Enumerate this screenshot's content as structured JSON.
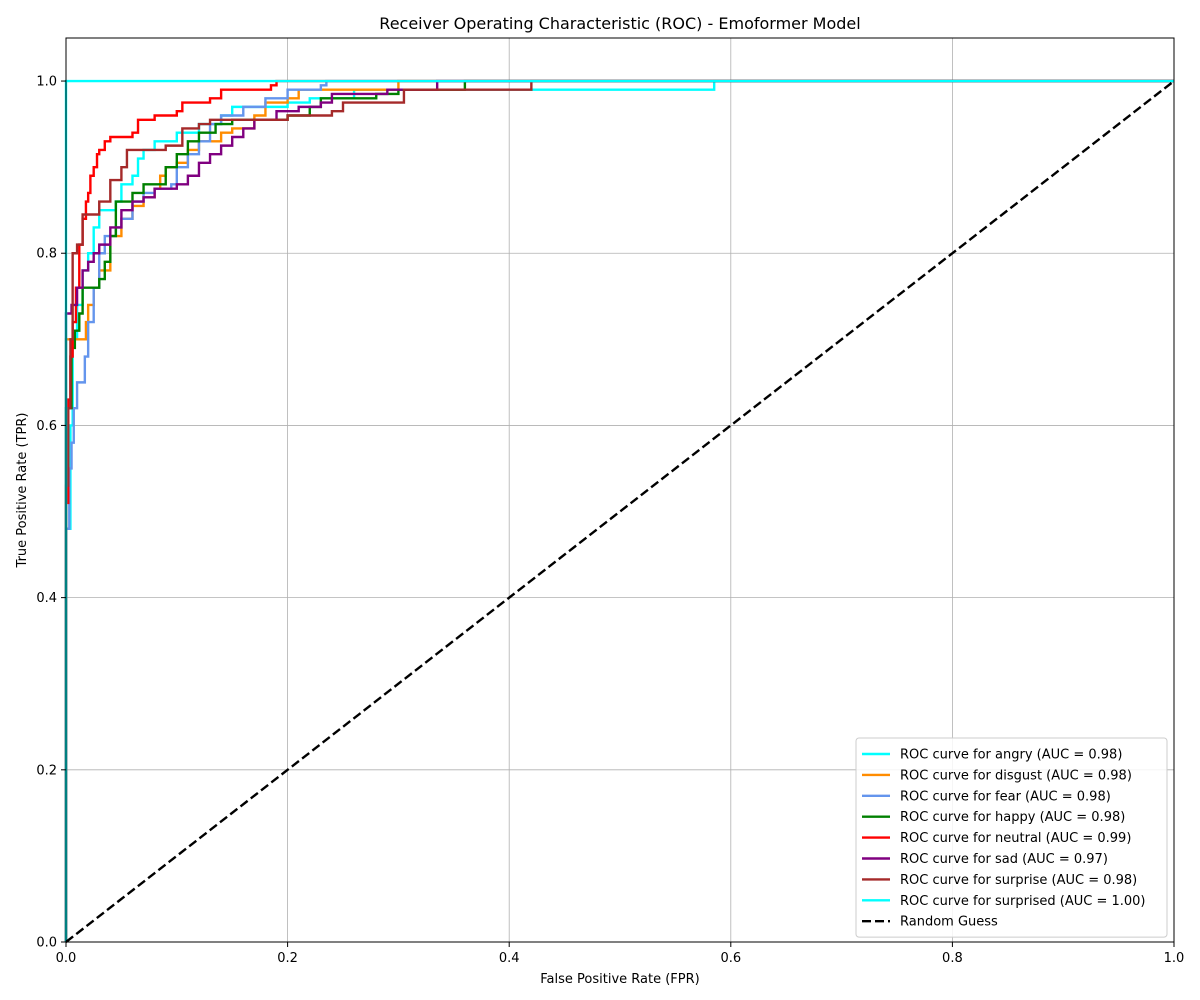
{
  "chart_data": {
    "type": "line",
    "title": "Receiver Operating Characteristic (ROC) - Emoformer Model",
    "xlabel": "False Positive Rate (FPR)",
    "ylabel": "True Positive Rate (TPR)",
    "xlim": [
      0.0,
      1.0
    ],
    "ylim": [
      0.0,
      1.05
    ],
    "xticks": [
      0.0,
      0.2,
      0.4,
      0.6,
      0.8,
      1.0
    ],
    "yticks": [
      0.0,
      0.2,
      0.4,
      0.6,
      0.8,
      1.0
    ],
    "xtick_labels": [
      "0.0",
      "0.2",
      "0.4",
      "0.6",
      "0.8",
      "1.0"
    ],
    "ytick_labels": [
      "0.0",
      "0.2",
      "0.4",
      "0.6",
      "0.8",
      "1.0"
    ],
    "grid": true,
    "legend_position": "lower-right",
    "series": [
      {
        "name": "ROC curve for angry (AUC = 0.98)",
        "color": "#00ffff",
        "style": "solid",
        "points": [
          [
            0.0,
            0.0
          ],
          [
            0.0,
            0.48
          ],
          [
            0.004,
            0.6
          ],
          [
            0.006,
            0.7
          ],
          [
            0.01,
            0.74
          ],
          [
            0.015,
            0.78
          ],
          [
            0.02,
            0.8
          ],
          [
            0.025,
            0.83
          ],
          [
            0.03,
            0.85
          ],
          [
            0.045,
            0.86
          ],
          [
            0.05,
            0.88
          ],
          [
            0.06,
            0.89
          ],
          [
            0.065,
            0.91
          ],
          [
            0.07,
            0.92
          ],
          [
            0.08,
            0.93
          ],
          [
            0.1,
            0.94
          ],
          [
            0.12,
            0.95
          ],
          [
            0.14,
            0.96
          ],
          [
            0.15,
            0.97
          ],
          [
            0.2,
            0.975
          ],
          [
            0.22,
            0.98
          ],
          [
            0.26,
            0.99
          ],
          [
            0.3,
            0.99
          ],
          [
            0.58,
            0.99
          ],
          [
            0.585,
            1.0
          ],
          [
            1.0,
            1.0
          ]
        ]
      },
      {
        "name": "ROC curve for disgust (AUC = 0.98)",
        "color": "#ff8c00",
        "style": "solid",
        "points": [
          [
            0.0,
            0.0
          ],
          [
            0.0,
            0.7
          ],
          [
            0.015,
            0.7
          ],
          [
            0.018,
            0.72
          ],
          [
            0.02,
            0.74
          ],
          [
            0.025,
            0.76
          ],
          [
            0.03,
            0.78
          ],
          [
            0.04,
            0.82
          ],
          [
            0.05,
            0.84
          ],
          [
            0.06,
            0.855
          ],
          [
            0.07,
            0.865
          ],
          [
            0.08,
            0.875
          ],
          [
            0.085,
            0.89
          ],
          [
            0.09,
            0.9
          ],
          [
            0.1,
            0.905
          ],
          [
            0.11,
            0.92
          ],
          [
            0.12,
            0.93
          ],
          [
            0.14,
            0.94
          ],
          [
            0.15,
            0.945
          ],
          [
            0.17,
            0.96
          ],
          [
            0.18,
            0.975
          ],
          [
            0.2,
            0.98
          ],
          [
            0.21,
            0.99
          ],
          [
            0.295,
            0.99
          ],
          [
            0.3,
            1.0
          ],
          [
            1.0,
            1.0
          ]
        ]
      },
      {
        "name": "ROC curve for fear (AUC = 0.98)",
        "color": "#6495ed",
        "style": "solid",
        "points": [
          [
            0.0,
            0.0
          ],
          [
            0.0,
            0.48
          ],
          [
            0.003,
            0.55
          ],
          [
            0.005,
            0.58
          ],
          [
            0.007,
            0.62
          ],
          [
            0.01,
            0.65
          ],
          [
            0.017,
            0.68
          ],
          [
            0.02,
            0.72
          ],
          [
            0.025,
            0.76
          ],
          [
            0.03,
            0.8
          ],
          [
            0.035,
            0.82
          ],
          [
            0.045,
            0.83
          ],
          [
            0.05,
            0.84
          ],
          [
            0.06,
            0.86
          ],
          [
            0.07,
            0.87
          ],
          [
            0.08,
            0.875
          ],
          [
            0.095,
            0.88
          ],
          [
            0.1,
            0.9
          ],
          [
            0.11,
            0.915
          ],
          [
            0.12,
            0.93
          ],
          [
            0.13,
            0.95
          ],
          [
            0.14,
            0.96
          ],
          [
            0.16,
            0.97
          ],
          [
            0.18,
            0.98
          ],
          [
            0.2,
            0.99
          ],
          [
            0.23,
            0.995
          ],
          [
            0.235,
            1.0
          ],
          [
            1.0,
            1.0
          ]
        ]
      },
      {
        "name": "ROC curve for happy (AUC = 0.98)",
        "color": "#008000",
        "style": "solid",
        "points": [
          [
            0.0,
            0.0
          ],
          [
            0.0,
            0.62
          ],
          [
            0.005,
            0.69
          ],
          [
            0.008,
            0.71
          ],
          [
            0.012,
            0.73
          ],
          [
            0.015,
            0.76
          ],
          [
            0.03,
            0.77
          ],
          [
            0.035,
            0.79
          ],
          [
            0.04,
            0.82
          ],
          [
            0.045,
            0.86
          ],
          [
            0.06,
            0.87
          ],
          [
            0.07,
            0.88
          ],
          [
            0.09,
            0.9
          ],
          [
            0.1,
            0.915
          ],
          [
            0.11,
            0.93
          ],
          [
            0.12,
            0.94
          ],
          [
            0.135,
            0.95
          ],
          [
            0.15,
            0.955
          ],
          [
            0.2,
            0.96
          ],
          [
            0.22,
            0.97
          ],
          [
            0.23,
            0.98
          ],
          [
            0.28,
            0.985
          ],
          [
            0.3,
            0.99
          ],
          [
            0.355,
            0.99
          ],
          [
            0.36,
            1.0
          ],
          [
            1.0,
            1.0
          ]
        ]
      },
      {
        "name": "ROC curve for neutral (AUC = 0.99)",
        "color": "#ff0000",
        "style": "solid",
        "points": [
          [
            0.0,
            0.0
          ],
          [
            0.0,
            0.51
          ],
          [
            0.002,
            0.63
          ],
          [
            0.004,
            0.68
          ],
          [
            0.006,
            0.72
          ],
          [
            0.009,
            0.76
          ],
          [
            0.012,
            0.81
          ],
          [
            0.015,
            0.84
          ],
          [
            0.018,
            0.86
          ],
          [
            0.02,
            0.87
          ],
          [
            0.022,
            0.89
          ],
          [
            0.025,
            0.9
          ],
          [
            0.028,
            0.915
          ],
          [
            0.03,
            0.92
          ],
          [
            0.035,
            0.93
          ],
          [
            0.04,
            0.935
          ],
          [
            0.06,
            0.94
          ],
          [
            0.065,
            0.955
          ],
          [
            0.08,
            0.96
          ],
          [
            0.1,
            0.965
          ],
          [
            0.105,
            0.975
          ],
          [
            0.13,
            0.98
          ],
          [
            0.14,
            0.99
          ],
          [
            0.185,
            0.995
          ],
          [
            0.19,
            1.0
          ],
          [
            1.0,
            1.0
          ]
        ]
      },
      {
        "name": "ROC curve for sad (AUC = 0.97)",
        "color": "#800080",
        "style": "solid",
        "points": [
          [
            0.0,
            0.0
          ],
          [
            0.0,
            0.73
          ],
          [
            0.005,
            0.74
          ],
          [
            0.01,
            0.76
          ],
          [
            0.015,
            0.78
          ],
          [
            0.02,
            0.79
          ],
          [
            0.025,
            0.8
          ],
          [
            0.03,
            0.81
          ],
          [
            0.04,
            0.83
          ],
          [
            0.05,
            0.85
          ],
          [
            0.06,
            0.86
          ],
          [
            0.07,
            0.865
          ],
          [
            0.08,
            0.875
          ],
          [
            0.1,
            0.88
          ],
          [
            0.11,
            0.89
          ],
          [
            0.12,
            0.905
          ],
          [
            0.13,
            0.915
          ],
          [
            0.14,
            0.925
          ],
          [
            0.15,
            0.935
          ],
          [
            0.16,
            0.945
          ],
          [
            0.17,
            0.955
          ],
          [
            0.19,
            0.965
          ],
          [
            0.21,
            0.97
          ],
          [
            0.23,
            0.975
          ],
          [
            0.24,
            0.985
          ],
          [
            0.29,
            0.99
          ],
          [
            0.33,
            0.99
          ],
          [
            0.335,
            1.0
          ],
          [
            1.0,
            1.0
          ]
        ]
      },
      {
        "name": "ROC curve for surprise (AUC = 0.98)",
        "color": "#a52a2a",
        "style": "solid",
        "points": [
          [
            0.0,
            0.0
          ],
          [
            0.0,
            0.53
          ],
          [
            0.002,
            0.62
          ],
          [
            0.004,
            0.7
          ],
          [
            0.006,
            0.8
          ],
          [
            0.01,
            0.81
          ],
          [
            0.015,
            0.845
          ],
          [
            0.03,
            0.86
          ],
          [
            0.04,
            0.885
          ],
          [
            0.05,
            0.9
          ],
          [
            0.055,
            0.92
          ],
          [
            0.09,
            0.925
          ],
          [
            0.105,
            0.945
          ],
          [
            0.12,
            0.95
          ],
          [
            0.13,
            0.955
          ],
          [
            0.2,
            0.96
          ],
          [
            0.24,
            0.965
          ],
          [
            0.25,
            0.975
          ],
          [
            0.3,
            0.975
          ],
          [
            0.305,
            0.99
          ],
          [
            0.42,
            0.99
          ],
          [
            0.42,
            1.0
          ],
          [
            1.0,
            1.0
          ]
        ]
      },
      {
        "name": "ROC curve for surprised (AUC = 1.00)",
        "color": "#00ffff",
        "style": "solid",
        "points": [
          [
            0.0,
            0.0
          ],
          [
            0.0,
            1.0
          ],
          [
            1.0,
            1.0
          ]
        ]
      },
      {
        "name": "Random Guess",
        "color": "#000000",
        "style": "dashed",
        "points": [
          [
            0.0,
            0.0
          ],
          [
            1.0,
            1.0
          ]
        ]
      }
    ]
  }
}
